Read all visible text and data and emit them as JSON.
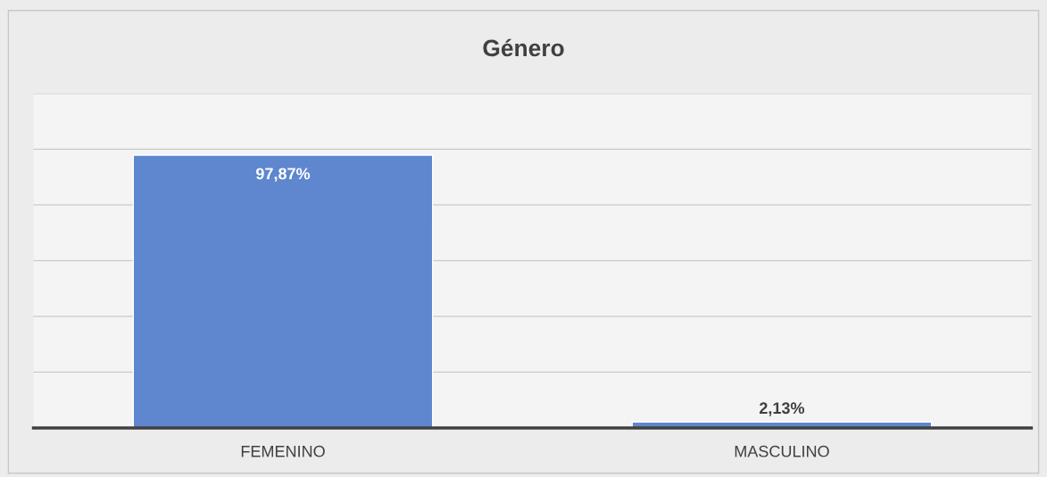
{
  "chart_data": {
    "type": "bar",
    "title": "Género",
    "categories": [
      "FEMENINO",
      "MASCULINO"
    ],
    "series": [
      {
        "color": "#5f87cf",
        "values": [
          97.87,
          2.13
        ],
        "value_labels": [
          "97,87%",
          "2,13%"
        ]
      }
    ],
    "ylim": [
      0,
      120
    ],
    "yticks": [
      {
        "value": 0,
        "label": null
      },
      {
        "value": 20,
        "label": null
      },
      {
        "value": 40,
        "label": null
      },
      {
        "value": 60,
        "label": null
      },
      {
        "value": 80,
        "label": null
      },
      {
        "value": 100,
        "label": null
      },
      {
        "value": 120,
        "label": null
      }
    ],
    "tick_labels": "x",
    "grid": "y",
    "legend": false
  }
}
